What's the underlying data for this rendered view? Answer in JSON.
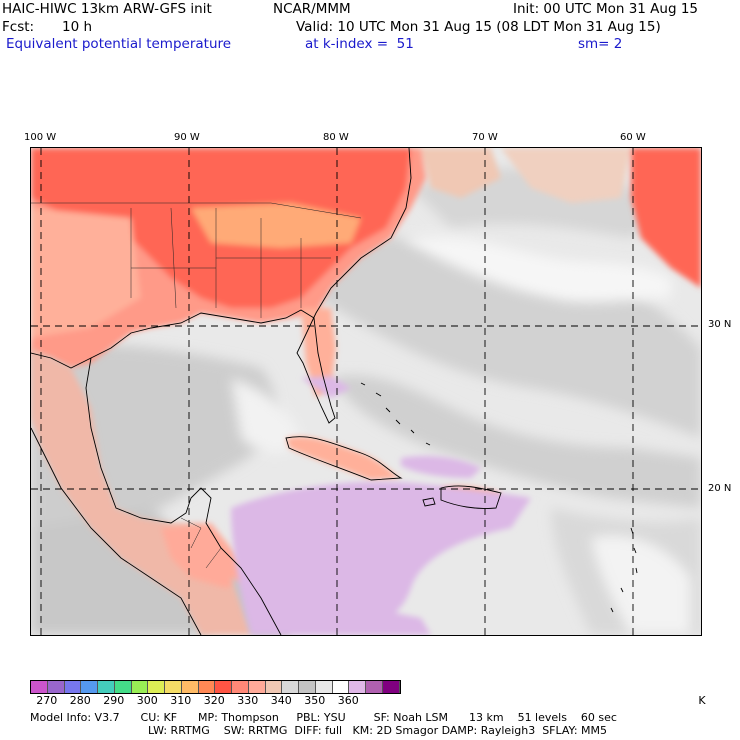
{
  "header": {
    "model_title": "HAIC-HIWC 13km ARW-GFS init",
    "org": "NCAR/MMM",
    "init": "Init: 00 UTC Mon 31 Aug 15",
    "fcst_label": "Fcst:",
    "fcst_value": "10 h",
    "valid": "Valid: 10 UTC Mon 31 Aug 15 (08 LDT Mon 31 Aug 15)",
    "field": "Equivalent potential temperature",
    "level": "at k-index =  51",
    "smoothing": "sm= 2"
  },
  "axes": {
    "lon_labels": [
      "100 W",
      "90 W",
      "80 W",
      "70 W",
      "60 W"
    ],
    "lat_labels": [
      "30 N",
      "20 N"
    ]
  },
  "legend": {
    "labels": [
      "270",
      "280",
      "290",
      "300",
      "310",
      "320",
      "330",
      "340",
      "350",
      "360"
    ],
    "unit": "K",
    "colors": [
      "#cc55cc",
      "#9966cc",
      "#7777ee",
      "#5599ee",
      "#44ccbb",
      "#44dd88",
      "#99ee55",
      "#ddee55",
      "#f5dd66",
      "#ffbb66",
      "#ff8855",
      "#ff5544",
      "#ff8877",
      "#ffaa99",
      "#f0c8b4",
      "#d8d8d8",
      "#c4c4c4",
      "#e8e8e8",
      "#ffffff",
      "#e0b8e8",
      "#b060b0",
      "#800080"
    ]
  },
  "footer": {
    "line1": "Model Info: V3.7      CU: KF      MP: Thompson     PBL: YSU        SF: Noah LSM      13 km    51 levels    60 sec",
    "line2": "LW: RRTMG    SW: RRTMG  DIFF: full   KM: 2D Smagor DAMP: Rayleigh3  SFLAY: MM5"
  }
}
